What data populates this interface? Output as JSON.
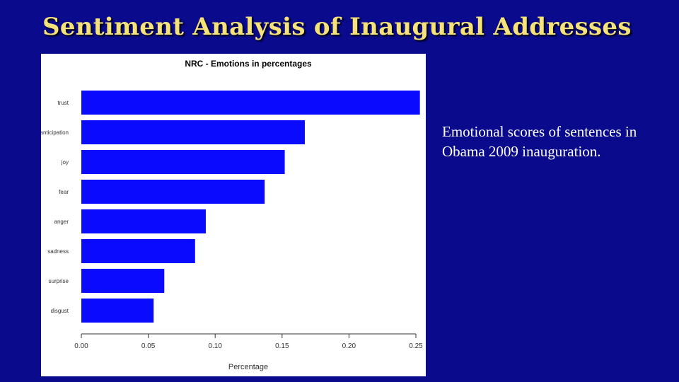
{
  "slide": {
    "title": "Sentiment Analysis of Inaugural Addresses",
    "caption": "Emotional scores of sentences in Obama 2009 inauguration."
  },
  "colors": {
    "background": "#0a0a8c",
    "title": "#f6e27a",
    "bar": "#0a0aff"
  },
  "chart_data": {
    "type": "bar",
    "orientation": "horizontal",
    "title": "NRC - Emotions in percentages",
    "xlabel": "Percentage",
    "ylabel": "",
    "categories": [
      "trust",
      "anticipation",
      "joy",
      "fear",
      "anger",
      "sadness",
      "surprise",
      "disgust"
    ],
    "values": [
      0.253,
      0.167,
      0.152,
      0.137,
      0.093,
      0.085,
      0.062,
      0.054
    ],
    "xlim": [
      0,
      0.25
    ],
    "xticks": [
      "0.00",
      "0.05",
      "0.10",
      "0.15",
      "0.20",
      "0.25"
    ],
    "grid": false,
    "legend": false
  }
}
